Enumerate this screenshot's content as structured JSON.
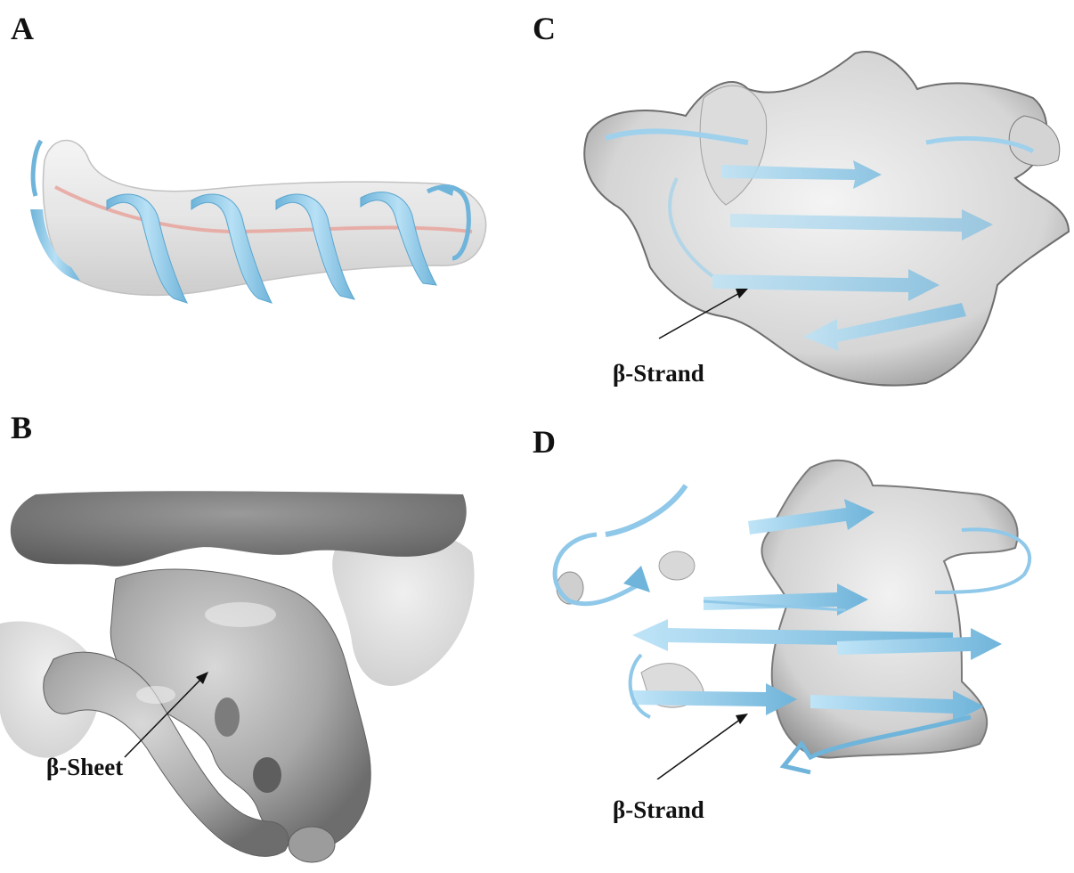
{
  "figure": {
    "panels": [
      {
        "letter": "A",
        "annotation": ""
      },
      {
        "letter": "B",
        "annotation": "β-Sheet"
      },
      {
        "letter": "C",
        "annotation": "β-Strand"
      },
      {
        "letter": "D",
        "annotation": "β-Strand"
      }
    ],
    "colors": {
      "ribbon": "#9fd1ec",
      "ribbon_dark": "#5aa6cf",
      "density_light": "#e2e2e2",
      "density_mid": "#bdbdbd",
      "density_dark": "#6d6d6d",
      "helix_axis": "#e8a39c",
      "text": "#111111"
    }
  }
}
